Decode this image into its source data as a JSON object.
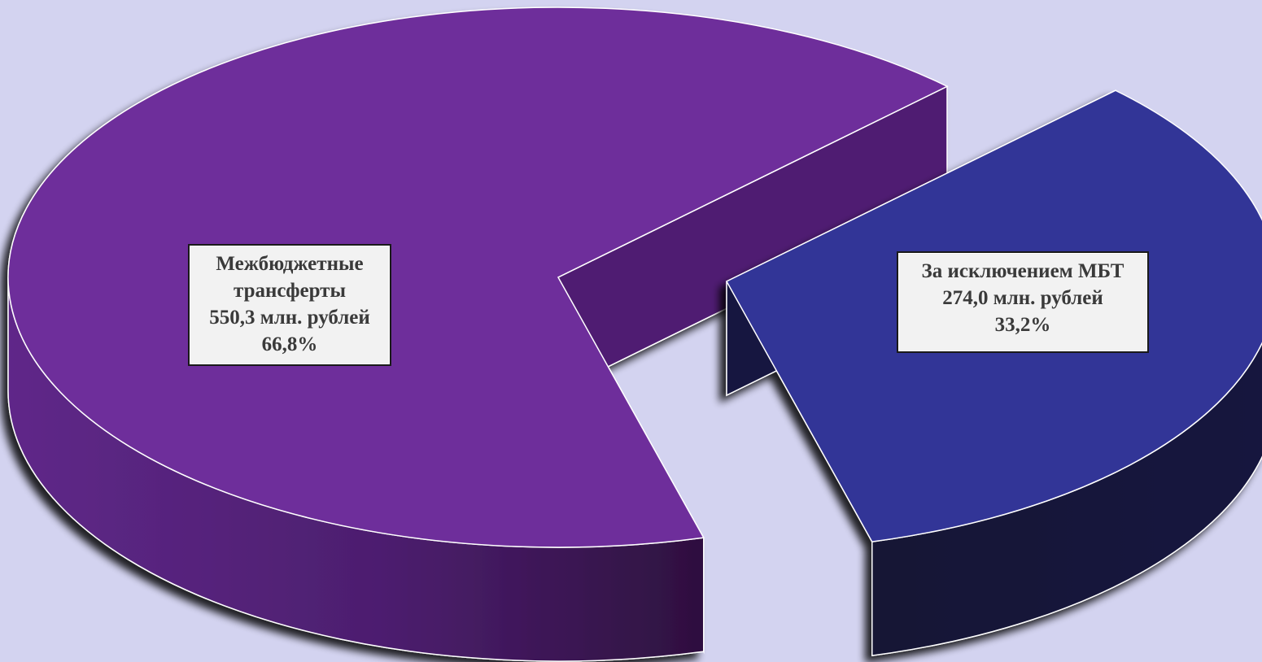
{
  "chart_data": {
    "type": "pie",
    "style": "3d-exploded",
    "title": "",
    "slices": [
      {
        "name": "Межбюджетные трансферты",
        "value": 550.3,
        "unit": "млн. рублей",
        "percent": 66.8,
        "color": "#6e2e9b",
        "side_color": "#4f1f72",
        "label_lines": [
          "Межбюджетные",
          "трансферты",
          "550,3 млн. рублей",
          "66,8%"
        ]
      },
      {
        "name": "За исключением МБТ",
        "value": 274.0,
        "unit": "млн. рублей",
        "percent": 33.2,
        "color": "#323497",
        "side_color": "#151540",
        "label_lines": [
          "За исключением МБТ",
          "274,0 млн. рублей",
          "33,2%"
        ]
      }
    ],
    "legend": "none",
    "background": "#d3d3f0"
  }
}
